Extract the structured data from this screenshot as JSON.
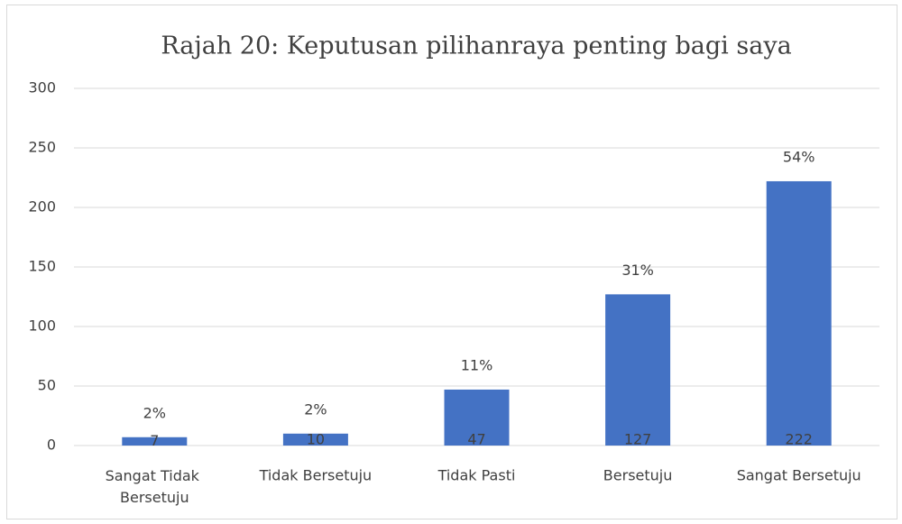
{
  "chart_data": {
    "type": "bar",
    "title": "Rajah 20: Keputusan pilihanraya penting bagi saya",
    "categories": [
      "Sangat Tidak Bersetuju",
      "Tidak Bersetuju",
      "Tidak Pasti",
      "Bersetuju",
      "Sangat Bersetuju"
    ],
    "values": [
      7,
      10,
      47,
      127,
      222
    ],
    "percent_labels": [
      "2%",
      "2%",
      "11%",
      "31%",
      "54%"
    ],
    "color": "#4472c4",
    "ylim": [
      0,
      300
    ],
    "yticks": [
      0,
      50,
      100,
      150,
      200,
      250,
      300
    ],
    "grid": true
  }
}
